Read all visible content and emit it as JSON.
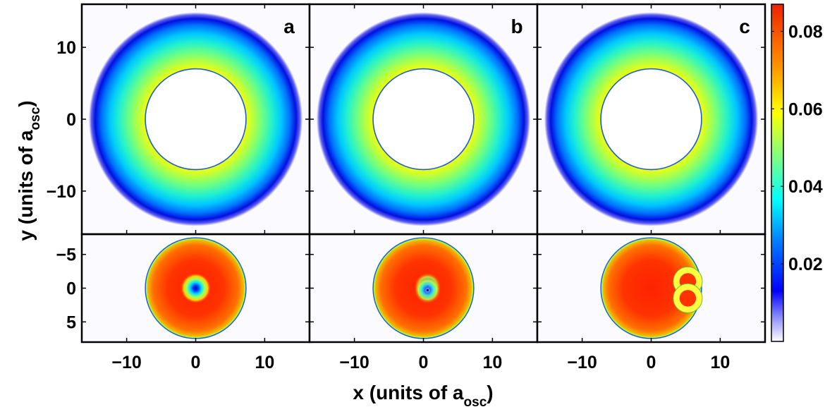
{
  "chart_data": {
    "type": "heatmap",
    "xlabel": "x (units of a",
    "xlabel_sub": "osc",
    "xlabel_close": ")",
    "ylabel": "y (units of a",
    "ylabel_sub": "osc",
    "ylabel_close": ")",
    "top_row": {
      "xlim": [
        -16.5,
        16.5
      ],
      "ylim": [
        -16,
        16
      ],
      "yticks": [
        10,
        0,
        -10
      ],
      "ytick_labels": [
        "10",
        "0",
        "−10"
      ],
      "ring": {
        "inner_radius": 7.3,
        "outer_radius": 15.3,
        "peak_density": 0.062
      }
    },
    "bottom_row": {
      "xlim": [
        -16.5,
        16.5
      ],
      "ylim": [
        -8,
        8
      ],
      "yticks": [
        -5,
        0,
        5
      ],
      "ytick_labels": [
        "−5",
        "0",
        "5"
      ],
      "y_inverted": true,
      "disk": {
        "radius": 7.3,
        "peak_density": 0.085
      }
    },
    "xticks": [
      -10,
      0,
      10
    ],
    "xtick_labels": [
      "−10",
      "0",
      "10"
    ],
    "panels": [
      {
        "label": "a",
        "vortices": [
          {
            "x": 0,
            "y": 0,
            "core_radius": 1.0
          }
        ]
      },
      {
        "label": "b",
        "vortices": [
          {
            "x": 0.6,
            "y": -0.3,
            "core_radius": 0.8
          },
          {
            "x": 0.6,
            "y": 0.3,
            "core_radius": 0.8
          }
        ]
      },
      {
        "label": "c",
        "vortices": [
          {
            "x": 5.3,
            "y": -1.0,
            "core_radius": 0.3
          },
          {
            "x": 5.3,
            "y": 1.5,
            "core_radius": 0.3
          }
        ]
      }
    ],
    "colorbar": {
      "min": 0,
      "max": 0.087,
      "ticks": [
        0.02,
        0.04,
        0.06,
        0.08
      ],
      "tick_labels": [
        "0.02",
        "0.04",
        "0.06",
        "0.08"
      ],
      "colormap": "jet-white-low"
    }
  }
}
